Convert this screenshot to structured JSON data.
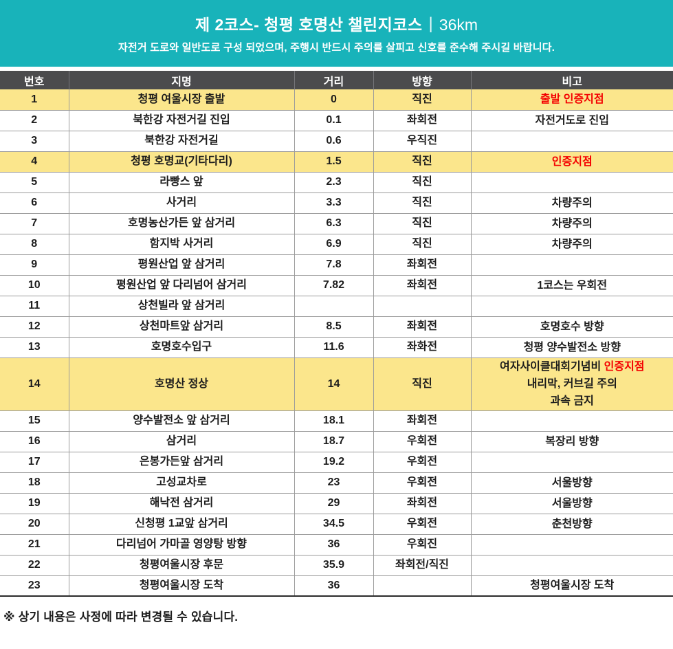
{
  "colors": {
    "banner_bg": "#18b3ba",
    "table_header_bg": "#4b4b4d",
    "highlight_row_bg": "#fbe68c",
    "accent_red": "#f40000"
  },
  "banner": {
    "title": "제 2코스- 청평 호명산 챌린지코스",
    "separator": "|",
    "distance": "36km",
    "subtitle": "자전거 도로와 일반도로 구성 되었으며, 주행시 반드시 주의를 살피고 신호를 준수해 주시길 바랍니다."
  },
  "table": {
    "headers": [
      "번호",
      "지명",
      "거리",
      "방향",
      "비고"
    ],
    "rows": [
      {
        "no": "1",
        "place": "청평 여울시장 출발",
        "dist": "0",
        "dir": "직진",
        "highlight": true,
        "note_lines": [
          [
            {
              "text": "출발 인증지점",
              "red": true
            }
          ]
        ]
      },
      {
        "no": "2",
        "place": "북한강 자전거길 진입",
        "dist": "0.1",
        "dir": "좌회전",
        "note_lines": [
          [
            {
              "text": "자전거도로 진입"
            }
          ]
        ]
      },
      {
        "no": "3",
        "place": "북한강 자전거길",
        "dist": "0.6",
        "dir": "우직진",
        "note_lines": []
      },
      {
        "no": "4",
        "place": "청평 호명교(기타다리)",
        "dist": "1.5",
        "dir": "직진",
        "highlight": true,
        "note_lines": [
          [
            {
              "text": "인증지점",
              "red": true
            }
          ]
        ]
      },
      {
        "no": "5",
        "place": "라빵스 앞",
        "dist": "2.3",
        "dir": "직진",
        "note_lines": []
      },
      {
        "no": "6",
        "place": "사거리",
        "dist": "3.3",
        "dir": "직진",
        "note_lines": [
          [
            {
              "text": "차량주의"
            }
          ]
        ]
      },
      {
        "no": "7",
        "place": "호명농산가든 앞 삼거리",
        "dist": "6.3",
        "dir": "직진",
        "note_lines": [
          [
            {
              "text": "차량주의"
            }
          ]
        ]
      },
      {
        "no": "8",
        "place": "함지박 사거리",
        "dist": "6.9",
        "dir": "직진",
        "note_lines": [
          [
            {
              "text": "차량주의"
            }
          ]
        ]
      },
      {
        "no": "9",
        "place": "평원산업 앞 삼거리",
        "dist": "7.8",
        "dir": "좌회전",
        "note_lines": []
      },
      {
        "no": "10",
        "place": "평원산업 앞 다리넘어 삼거리",
        "dist": "7.82",
        "dir": "좌회전",
        "note_lines": [
          [
            {
              "text": "1코스는 우회전"
            }
          ]
        ]
      },
      {
        "no": "11",
        "place": "상천빌라 앞 삼거리",
        "dist": "",
        "dir": "",
        "note_lines": []
      },
      {
        "no": "12",
        "place": "상천마트앞 삼거리",
        "dist": "8.5",
        "dir": "좌회전",
        "note_lines": [
          [
            {
              "text": "호명호수 방향"
            }
          ]
        ]
      },
      {
        "no": "13",
        "place": "호명호수입구",
        "dist": "11.6",
        "dir": "좌화전",
        "note_lines": [
          [
            {
              "text": "청평 양수발전소 방향"
            }
          ]
        ]
      },
      {
        "no": "14",
        "place": "호명산 정상",
        "dist": "14",
        "dir": "직진",
        "highlight": true,
        "tall": true,
        "note_lines": [
          [
            {
              "text": "여자사이클대회기념비 "
            },
            {
              "text": "인증지점",
              "red": true
            }
          ],
          [
            {
              "text": "내리막, 커브길 주의"
            }
          ],
          [
            {
              "text": "과속 금지"
            }
          ]
        ]
      },
      {
        "no": "15",
        "place": "양수발전소 앞 삼거리",
        "dist": "18.1",
        "dir": "좌회전",
        "note_lines": []
      },
      {
        "no": "16",
        "place": "삼거리",
        "dist": "18.7",
        "dir": "우회전",
        "note_lines": [
          [
            {
              "text": "복장리 방향"
            }
          ]
        ]
      },
      {
        "no": "17",
        "place": "은봉가든앞 삼거리",
        "dist": "19.2",
        "dir": "우회전",
        "note_lines": []
      },
      {
        "no": "18",
        "place": "고성교차로",
        "dist": "23",
        "dir": "우회전",
        "note_lines": [
          [
            {
              "text": "서울방향"
            }
          ]
        ]
      },
      {
        "no": "19",
        "place": "해낙전 삼거리",
        "dist": "29",
        "dir": "좌회전",
        "note_lines": [
          [
            {
              "text": "서울방향"
            }
          ]
        ]
      },
      {
        "no": "20",
        "place": "신청평 1교앞 삼거리",
        "dist": "34.5",
        "dir": "우회전",
        "note_lines": [
          [
            {
              "text": "춘천방향"
            }
          ]
        ]
      },
      {
        "no": "21",
        "place": "다리넘어 가마골 영양탕 방향",
        "dist": "36",
        "dir": "우회진",
        "note_lines": []
      },
      {
        "no": "22",
        "place": "청평여울시장 후문",
        "dist": "35.9",
        "dir": "좌회전/직진",
        "note_lines": []
      },
      {
        "no": "23",
        "place": "청평여울시장  도착",
        "dist": "36",
        "dir": "",
        "note_lines": [
          [
            {
              "text": "청평여울시장 도착"
            }
          ]
        ]
      }
    ]
  },
  "footer": {
    "note": "※ 상기 내용은 사정에 따라 변경될 수 있습니다."
  }
}
